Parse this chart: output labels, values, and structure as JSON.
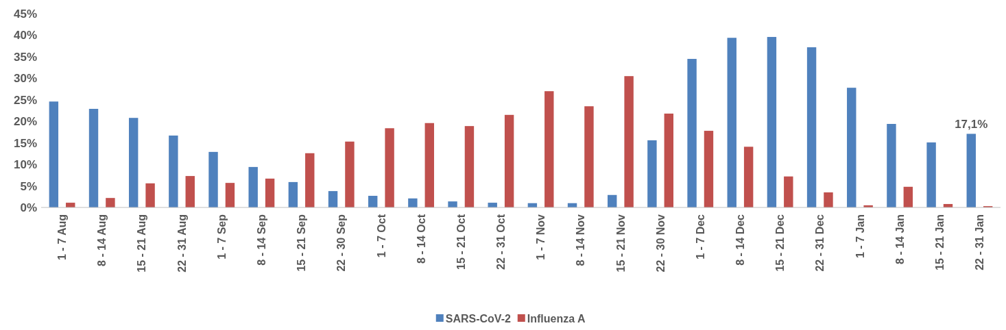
{
  "chart_data": {
    "type": "bar",
    "categories": [
      "1 - 7 Aug",
      "8 - 14 Aug",
      "15 - 21 Aug",
      "22 - 31 Aug",
      "1 - 7 Sep",
      "8 - 14 Sep",
      "15 - 21 Sep",
      "22 - 30 Sep",
      "1 - 7 Oct",
      "8 - 14 Oct",
      "15 - 21 Oct",
      "22 - 31 Oct",
      "1 - 7 Nov",
      "8 - 14 Nov",
      "15 - 21 Nov",
      "22 - 30 Nov",
      "1 - 7 Dec",
      "8 - 14 Dec",
      "15 - 21 Dec",
      "22 - 31 Dec",
      "1 - 7 Jan",
      "8 - 14 Jan",
      "15 - 21 Jan",
      "22 - 31 Jan"
    ],
    "series": [
      {
        "name": "SARS-CoV-2",
        "color": "#4f81bd",
        "values": [
          24.6,
          22.9,
          20.8,
          16.7,
          12.9,
          9.4,
          5.9,
          3.8,
          2.7,
          2.1,
          1.4,
          1.1,
          1.0,
          1.0,
          2.9,
          15.6,
          34.5,
          39.4,
          39.6,
          37.2,
          27.8,
          19.4,
          15.1,
          17.1
        ],
        "value_labels": [
          null,
          null,
          null,
          null,
          null,
          null,
          null,
          null,
          null,
          null,
          null,
          null,
          null,
          null,
          null,
          null,
          null,
          null,
          null,
          null,
          null,
          null,
          null,
          "17,1%"
        ]
      },
      {
        "name": "Influenza A",
        "color": "#c0504d",
        "values": [
          1.1,
          2.2,
          5.6,
          7.3,
          5.7,
          6.7,
          12.6,
          15.3,
          18.4,
          19.6,
          18.9,
          21.5,
          27.0,
          23.5,
          30.5,
          21.8,
          17.8,
          14.1,
          7.2,
          3.5,
          0.5,
          4.8,
          0.8,
          0.3
        ]
      }
    ],
    "ylim": [
      0,
      45
    ],
    "yticks": [
      {
        "value": 0,
        "label": "0%"
      },
      {
        "value": 5,
        "label": "5%"
      },
      {
        "value": 10,
        "label": "10%"
      },
      {
        "value": 15,
        "label": "15%"
      },
      {
        "value": 20,
        "label": "20%"
      },
      {
        "value": 25,
        "label": "25%"
      },
      {
        "value": 30,
        "label": "30%"
      },
      {
        "value": 35,
        "label": "35%"
      },
      {
        "value": 40,
        "label": "40%"
      },
      {
        "value": 45,
        "label": "45%"
      }
    ],
    "grid": false,
    "legend": "bottom"
  }
}
